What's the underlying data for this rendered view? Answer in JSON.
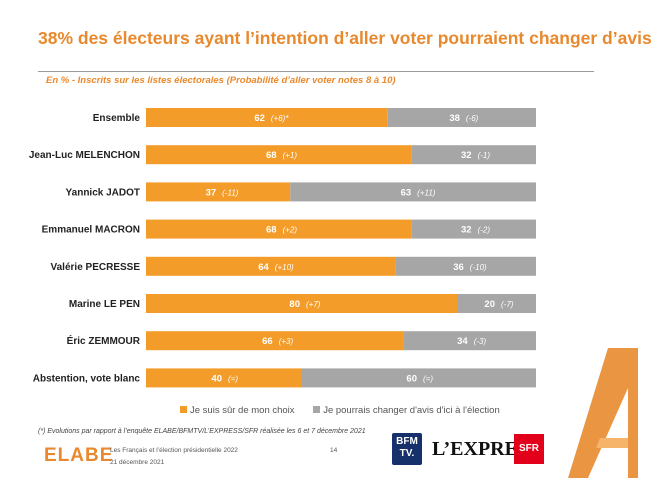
{
  "title": "38% des électeurs ayant l’intention d’aller voter pourraient changer d’avis",
  "subtitle": "En % - Inscrits sur les listes électorales (Probabilité d’aller voter notes 8 à 10)",
  "colors": {
    "accent": "#f39c2a",
    "grey": "#a6a6a6",
    "title": "#e8892e"
  },
  "chart_data": {
    "type": "bar",
    "orientation": "horizontal",
    "stacked": true,
    "percent": true,
    "categories": [
      "Ensemble",
      "Jean-Luc MELENCHON",
      "Yannick JADOT",
      "Emmanuel MACRON",
      "Valérie PECRESSE",
      "Marine LE PEN",
      "Éric ZEMMOUR",
      "Abstention, vote blanc"
    ],
    "series": [
      {
        "name": "Je suis sûr de mon choix",
        "color": "#f39c2a",
        "values": [
          62,
          68,
          37,
          68,
          64,
          80,
          66,
          40
        ],
        "evolutions": [
          "(+6)*",
          "(+1)",
          "(-11)",
          "(+2)",
          "(+10)",
          "(+7)",
          "(+3)",
          "(=)"
        ]
      },
      {
        "name": "Je pourrais changer d'avis d'ici à l'élection",
        "color": "#a6a6a6",
        "values": [
          38,
          32,
          63,
          32,
          36,
          20,
          34,
          60
        ],
        "evolutions": [
          "(-6)",
          "(-1)",
          "(+11)",
          "(-2)",
          "(-10)",
          "(-7)",
          "(-3)",
          "(=)"
        ]
      }
    ],
    "xlim": [
      0,
      100
    ],
    "legend": "bottom"
  },
  "footnote": "(*) Evolutions par rapport à l’enquête ELABE/BFMTV/L’EXPRESS/SFR réalisée les 6 et 7 décembre 2021",
  "footer": {
    "logo": "ELABE",
    "survey": "Les Français et l’élection présidentielle 2022",
    "page": "14",
    "date": "21 décembre 2021",
    "partner_bfm": "BFM TV.",
    "partner_express": "L’EXPRESS",
    "partner_sfr": "SFR"
  }
}
